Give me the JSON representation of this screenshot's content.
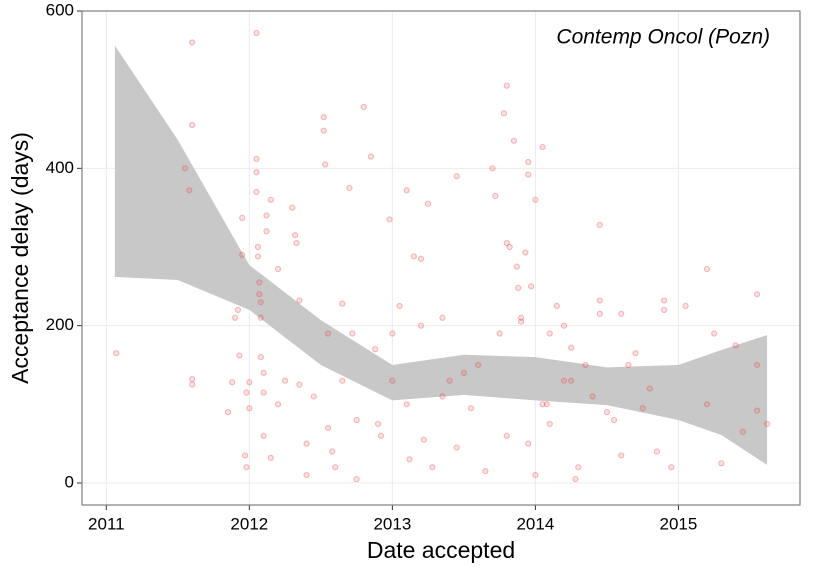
{
  "chart_data": {
    "type": "scatter",
    "annotation": "Contemp Oncol (Pozn)",
    "x_label": "Date accepted",
    "y_label": "Acceptance delay (days)",
    "xlim": [
      2010.83,
      2015.85
    ],
    "xticks": [
      2011,
      2012,
      2013,
      2014,
      2015
    ],
    "ylim": [
      -28,
      600
    ],
    "yticks": [
      0,
      200,
      400,
      600
    ],
    "grid": true,
    "point_color": "#e8383a",
    "band_color": "#c8c8c8",
    "x": [
      2011.07,
      2011.55,
      2011.58,
      2011.6,
      2011.6,
      2011.6,
      2011.6,
      2011.85,
      2011.88,
      2011.9,
      2011.92,
      2011.93,
      2011.95,
      2011.95,
      2011.97,
      2011.98,
      2011.98,
      2012.0,
      2012.0,
      2012.05,
      2012.05,
      2012.05,
      2012.05,
      2012.06,
      2012.06,
      2012.07,
      2012.07,
      2012.08,
      2012.08,
      2012.08,
      2012.1,
      2012.1,
      2012.1,
      2012.12,
      2012.12,
      2012.15,
      2012.15,
      2012.2,
      2012.2,
      2012.25,
      2012.3,
      2012.32,
      2012.33,
      2012.35,
      2012.35,
      2012.4,
      2012.4,
      2012.45,
      2012.52,
      2012.52,
      2012.53,
      2012.55,
      2012.55,
      2012.58,
      2012.6,
      2012.65,
      2012.65,
      2012.7,
      2012.72,
      2012.75,
      2012.75,
      2012.8,
      2012.85,
      2012.88,
      2012.9,
      2012.92,
      2012.98,
      2013.0,
      2013.0,
      2013.05,
      2013.1,
      2013.1,
      2013.12,
      2013.15,
      2013.2,
      2013.2,
      2013.22,
      2013.25,
      2013.28,
      2013.35,
      2013.35,
      2013.4,
      2013.45,
      2013.45,
      2013.5,
      2013.55,
      2013.6,
      2013.65,
      2013.7,
      2013.72,
      2013.75,
      2013.8,
      2013.9,
      2013.9,
      2013.95,
      2014.0,
      2014.0,
      2014.05,
      2014.1,
      2014.2,
      2014.25,
      2013.8,
      2013.78,
      2013.85,
      2013.95,
      2013.95,
      2014.05,
      2013.8,
      2013.82,
      2013.87,
      2013.93,
      2013.88,
      2013.97,
      2014.08,
      2014.1,
      2014.15,
      2014.2,
      2014.25,
      2014.28,
      2014.3,
      2014.35,
      2014.4,
      2014.45,
      2014.45,
      2014.45,
      2014.5,
      2014.55,
      2014.6,
      2014.6,
      2014.65,
      2014.7,
      2014.75,
      2014.8,
      2014.85,
      2014.9,
      2014.9,
      2014.95,
      2015.05,
      2015.2,
      2015.2,
      2015.25,
      2015.3,
      2015.4,
      2015.45,
      2015.55,
      2015.55,
      2015.55,
      2015.62
    ],
    "values": [
      165,
      400,
      372,
      560,
      455,
      132,
      125,
      90,
      128,
      210,
      220,
      162,
      337,
      290,
      35,
      20,
      115,
      128,
      95,
      572,
      412,
      395,
      370,
      300,
      288,
      255,
      240,
      230,
      210,
      160,
      140,
      115,
      60,
      320,
      340,
      360,
      32,
      272,
      100,
      130,
      350,
      315,
      305,
      232,
      125,
      10,
      50,
      110,
      465,
      448,
      405,
      190,
      70,
      40,
      20,
      228,
      130,
      375,
      190,
      5,
      80,
      478,
      415,
      170,
      75,
      60,
      335,
      190,
      130,
      225,
      372,
      100,
      30,
      288,
      285,
      200,
      55,
      355,
      20,
      210,
      110,
      130,
      390,
      45,
      140,
      95,
      150,
      15,
      400,
      365,
      190,
      60,
      205,
      210,
      50,
      360,
      10,
      100,
      75,
      200,
      130,
      505,
      470,
      435,
      408,
      392,
      427,
      305,
      300,
      275,
      293,
      248,
      250,
      100,
      190,
      225,
      130,
      172,
      5,
      20,
      150,
      110,
      328,
      232,
      215,
      90,
      80,
      215,
      35,
      150,
      165,
      95,
      120,
      40,
      232,
      220,
      20,
      225,
      272,
      100,
      190,
      25,
      175,
      65,
      240,
      150,
      92,
      75
    ],
    "band": {
      "x": [
        2011.06,
        2011.5,
        2012.0,
        2012.5,
        2013.0,
        2013.5,
        2014.0,
        2014.5,
        2015.0,
        2015.3,
        2015.62
      ],
      "upper": [
        556,
        436,
        277,
        207,
        150,
        163,
        160,
        147,
        150,
        169,
        188
      ],
      "lower": [
        262,
        258,
        220,
        150,
        105,
        112,
        105,
        99,
        80,
        61,
        23
      ]
    }
  }
}
